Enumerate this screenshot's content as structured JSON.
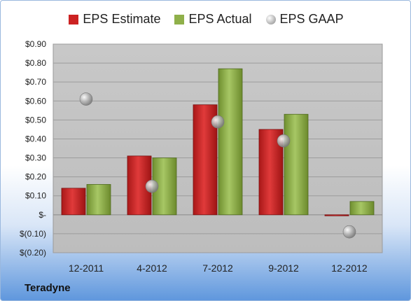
{
  "chart_data": {
    "type": "bar",
    "categories": [
      "12-2011",
      "4-2012",
      "7-2012",
      "9-2012",
      "12-2012"
    ],
    "series": [
      {
        "name": "EPS Estimate",
        "kind": "bar",
        "color": "#cc2222",
        "values": [
          0.14,
          0.31,
          0.58,
          0.45,
          0.0
        ]
      },
      {
        "name": "EPS Actual",
        "kind": "bar",
        "color": "#8fb04a",
        "values": [
          0.16,
          0.3,
          0.77,
          0.53,
          0.07
        ]
      },
      {
        "name": "EPS GAAP",
        "kind": "marker",
        "color": "#b7b7b7",
        "values": [
          0.61,
          0.15,
          0.49,
          0.39,
          -0.09
        ]
      }
    ],
    "ylim": [
      -0.2,
      0.9
    ],
    "y_ticks": [
      0.9,
      0.8,
      0.7,
      0.6,
      0.5,
      0.4,
      0.3,
      0.2,
      0.1,
      0.0,
      -0.1,
      -0.2
    ],
    "y_tick_labels": [
      "$0.90",
      "$0.80",
      "$0.70",
      "$0.60",
      "$0.50",
      "$0.40",
      "$0.30",
      "$0.20",
      "$0.10",
      "$-",
      "$(0.10)",
      "$(0.20)"
    ],
    "grid": true,
    "legend_position": "top"
  },
  "company": "Teradyne"
}
